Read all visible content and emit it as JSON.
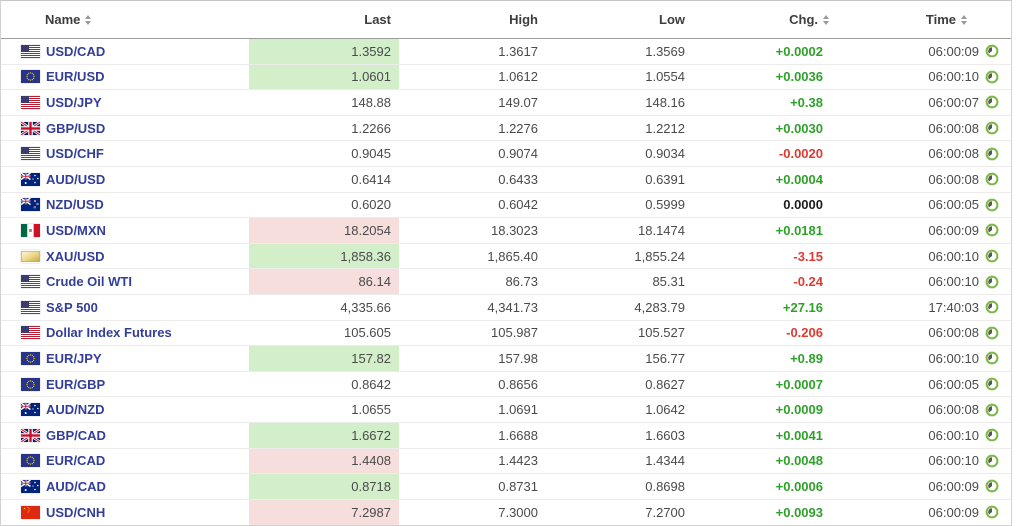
{
  "colors": {
    "positive": "#2fa12a",
    "negative": "#dd3b31",
    "positive_bg": "#d2efca",
    "negative_bg": "#f6dedd",
    "link_blue": "#333e99",
    "clock_green": "#7ab843"
  },
  "table": {
    "columns": [
      {
        "label": "Name",
        "sortable": true
      },
      {
        "label": "Last",
        "sortable": false
      },
      {
        "label": "High",
        "sortable": false
      },
      {
        "label": "Low",
        "sortable": false
      },
      {
        "label": "Chg.",
        "sortable": true
      },
      {
        "label": "Time",
        "sortable": true
      }
    ],
    "rows": [
      {
        "name": "USD/CAD",
        "flag": "us-flag",
        "last": "1.3592",
        "last_bg": "green",
        "high": "1.3617",
        "low": "1.3569",
        "chg": "+0.0002",
        "chg_dir": "up",
        "time": "06:00:09"
      },
      {
        "name": "EUR/USD",
        "flag": "eu-flag",
        "last": "1.0601",
        "last_bg": "green",
        "high": "1.0612",
        "low": "1.0554",
        "chg": "+0.0036",
        "chg_dir": "up",
        "time": "06:00:10"
      },
      {
        "name": "USD/JPY",
        "flag": "us-flag",
        "last": "148.88",
        "last_bg": "none",
        "high": "149.07",
        "low": "148.16",
        "chg": "+0.38",
        "chg_dir": "up",
        "time": "06:00:07"
      },
      {
        "name": "GBP/USD",
        "flag": "uk-flag",
        "last": "1.2266",
        "last_bg": "none",
        "high": "1.2276",
        "low": "1.2212",
        "chg": "+0.0030",
        "chg_dir": "up",
        "time": "06:00:08"
      },
      {
        "name": "USD/CHF",
        "flag": "us-flag",
        "last": "0.9045",
        "last_bg": "none",
        "high": "0.9074",
        "low": "0.9034",
        "chg": "-0.0020",
        "chg_dir": "down",
        "time": "06:00:08"
      },
      {
        "name": "AUD/USD",
        "flag": "australia-flag",
        "last": "0.6414",
        "last_bg": "none",
        "high": "0.6433",
        "low": "0.6391",
        "chg": "+0.0004",
        "chg_dir": "up",
        "time": "06:00:08"
      },
      {
        "name": "NZD/USD",
        "flag": "new-zealand-flag",
        "last": "0.6020",
        "last_bg": "none",
        "high": "0.6042",
        "low": "0.5999",
        "chg": "0.0000",
        "chg_dir": "flat",
        "time": "06:00:05"
      },
      {
        "name": "USD/MXN",
        "flag": "mexico-flag",
        "last": "18.2054",
        "last_bg": "red",
        "high": "18.3023",
        "low": "18.1474",
        "chg": "+0.0181",
        "chg_dir": "up",
        "time": "06:00:09"
      },
      {
        "name": "XAU/USD",
        "flag": "gold-icon",
        "last": "1,858.36",
        "last_bg": "green",
        "high": "1,865.40",
        "low": "1,855.24",
        "chg": "-3.15",
        "chg_dir": "down",
        "time": "06:00:10"
      },
      {
        "name": "Crude Oil WTI",
        "flag": "us-flag",
        "last": "86.14",
        "last_bg": "red",
        "high": "86.73",
        "low": "85.31",
        "chg": "-0.24",
        "chg_dir": "down",
        "time": "06:00:10"
      },
      {
        "name": "S&P 500",
        "flag": "us-flag",
        "last": "4,335.66",
        "last_bg": "none",
        "high": "4,341.73",
        "low": "4,283.79",
        "chg": "+27.16",
        "chg_dir": "up",
        "time": "17:40:03"
      },
      {
        "name": "Dollar Index Futures",
        "flag": "us-flag",
        "last": "105.605",
        "last_bg": "none",
        "high": "105.987",
        "low": "105.527",
        "chg": "-0.206",
        "chg_dir": "down",
        "time": "06:00:08"
      },
      {
        "name": "EUR/JPY",
        "flag": "eu-flag",
        "last": "157.82",
        "last_bg": "green",
        "high": "157.98",
        "low": "156.77",
        "chg": "+0.89",
        "chg_dir": "up",
        "time": "06:00:10"
      },
      {
        "name": "EUR/GBP",
        "flag": "eu-flag",
        "last": "0.8642",
        "last_bg": "none",
        "high": "0.8656",
        "low": "0.8627",
        "chg": "+0.0007",
        "chg_dir": "up",
        "time": "06:00:05"
      },
      {
        "name": "AUD/NZD",
        "flag": "australia-flag",
        "last": "1.0655",
        "last_bg": "none",
        "high": "1.0691",
        "low": "1.0642",
        "chg": "+0.0009",
        "chg_dir": "up",
        "time": "06:00:08"
      },
      {
        "name": "GBP/CAD",
        "flag": "uk-flag",
        "last": "1.6672",
        "last_bg": "green",
        "high": "1.6688",
        "low": "1.6603",
        "chg": "+0.0041",
        "chg_dir": "up",
        "time": "06:00:10"
      },
      {
        "name": "EUR/CAD",
        "flag": "eu-flag",
        "last": "1.4408",
        "last_bg": "red",
        "high": "1.4423",
        "low": "1.4344",
        "chg": "+0.0048",
        "chg_dir": "up",
        "time": "06:00:10"
      },
      {
        "name": "AUD/CAD",
        "flag": "australia-flag",
        "last": "0.8718",
        "last_bg": "green",
        "high": "0.8731",
        "low": "0.8698",
        "chg": "+0.0006",
        "chg_dir": "up",
        "time": "06:00:09"
      },
      {
        "name": "USD/CNH",
        "flag": "china-flag",
        "last": "7.2987",
        "last_bg": "red",
        "high": "7.3000",
        "low": "7.2700",
        "chg": "+0.0093",
        "chg_dir": "up",
        "time": "06:00:09"
      }
    ]
  }
}
